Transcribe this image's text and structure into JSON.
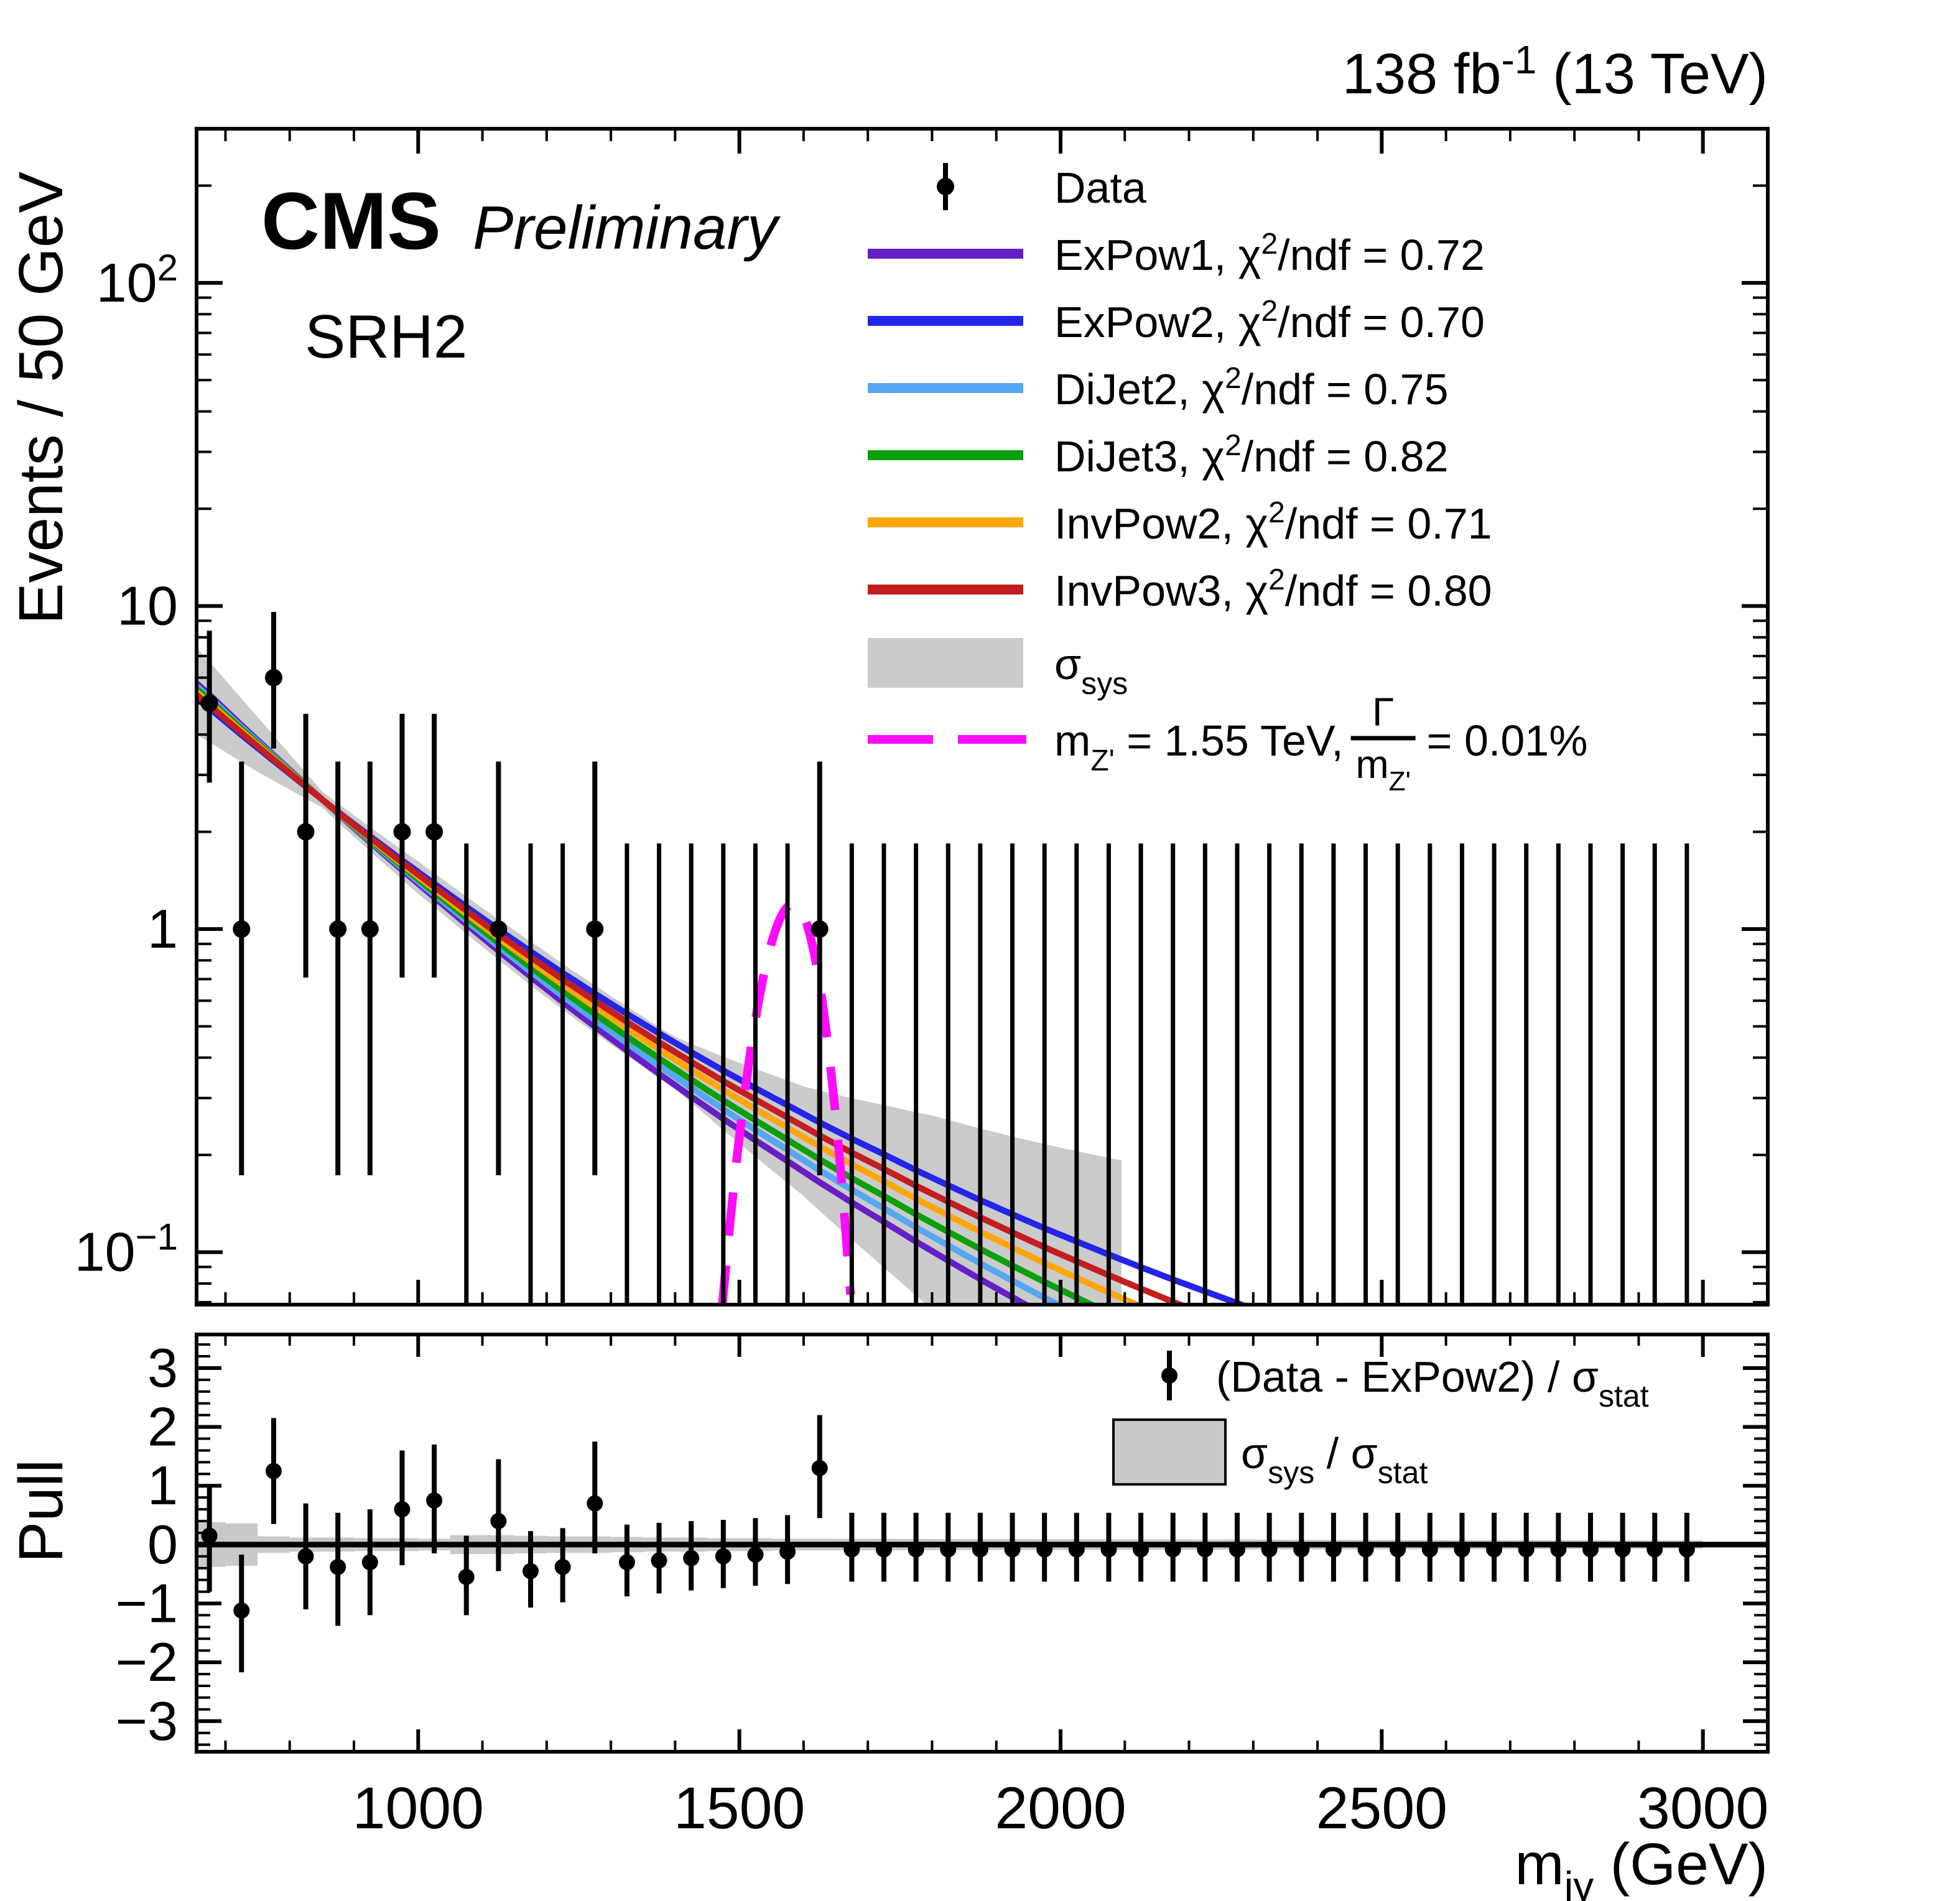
{
  "header": {
    "experiment": "CMS",
    "status": "Preliminary",
    "region": "SRH2",
    "lumi_main": "138 fb",
    "lumi_sup": "-1",
    "lumi_rest": " (13 TeV)"
  },
  "colors": {
    "purple": "#681EC6",
    "blue": "#2325E8",
    "lightblue": "#54A7F0",
    "green": "#0CA00C",
    "orange": "#FFA60A",
    "red": "#C41E1E",
    "magenta": "#FC0DFC",
    "sys_band": "#CBCBCB",
    "pull_band": "#C9C9C9",
    "marker": "#000000"
  },
  "chart_data": [
    {
      "type": "scatter",
      "panel": "main",
      "ylabel": "Events / 50 GeV",
      "yscale": "log",
      "ylim": [
        0.0688,
        300
      ],
      "xlim": [
        655,
        3101
      ],
      "x_major_ticks": [
        1000,
        1500,
        2000,
        2500,
        3000
      ],
      "x_minor_step": 100,
      "y_decade_labels": [
        "10^2",
        "10",
        "1",
        "10^-1"
      ],
      "bin_width_gev": 50,
      "legend_data_label": "Data",
      "data_points": [
        [
          675,
          5,
          2.84,
          8.382
        ],
        [
          725,
          1,
          0.173,
          3.3
        ],
        [
          775,
          6,
          3.62,
          9.584
        ],
        [
          825,
          2,
          0.708,
          4.638
        ],
        [
          875,
          1,
          0.173,
          3.3
        ],
        [
          925,
          1,
          0.173,
          3.3
        ],
        [
          975,
          2,
          0.708,
          4.638
        ],
        [
          1025,
          2,
          0.708,
          4.638
        ],
        [
          1125,
          1,
          0.173,
          3.3
        ],
        [
          1275,
          1,
          0.173,
          3.3
        ],
        [
          1625,
          1,
          0.173,
          3.3
        ]
      ],
      "zero_bins": {
        "upper_limit": 1.841,
        "x": [
          1075,
          1175,
          1225,
          1325,
          1375,
          1425,
          1475,
          1525,
          1575,
          1675,
          1725,
          1775,
          1825,
          1875,
          1925,
          1975,
          2025,
          2075,
          2125,
          2175,
          2225,
          2275,
          2325,
          2375,
          2425,
          2475,
          2525,
          2575,
          2625,
          2675,
          2725,
          2775,
          2825,
          2875,
          2925,
          2975
        ]
      },
      "fit_base_anchors": [
        [
          655,
          5.45
        ],
        [
          675,
          5.05
        ],
        [
          725,
          4.12
        ],
        [
          775,
          3.38
        ],
        [
          825,
          2.78
        ],
        [
          875,
          2.29
        ],
        [
          925,
          1.9
        ],
        [
          975,
          1.58
        ],
        [
          1025,
          1.32
        ],
        [
          1075,
          1.105
        ],
        [
          1125,
          0.928
        ],
        [
          1175,
          0.783
        ],
        [
          1225,
          0.663
        ],
        [
          1275,
          0.565
        ],
        [
          1325,
          0.483
        ],
        [
          1375,
          0.415
        ],
        [
          1425,
          0.358
        ],
        [
          1475,
          0.31
        ],
        [
          1525,
          0.27
        ],
        [
          1575,
          0.236
        ],
        [
          1625,
          0.206
        ],
        [
          1675,
          0.181
        ],
        [
          1725,
          0.16
        ],
        [
          1775,
          0.141
        ],
        [
          1825,
          0.125
        ],
        [
          1875,
          0.111
        ],
        [
          1925,
          0.099
        ],
        [
          1975,
          0.0885
        ],
        [
          2025,
          0.0795
        ],
        [
          2075,
          0.0715
        ],
        [
          2125,
          0.0645
        ],
        [
          2175,
          0.0583
        ],
        [
          2225,
          0.0529
        ]
      ],
      "fit_functions": [
        {
          "name": "ExPow1",
          "chi2ndf": "0.72",
          "color_key": "purple",
          "shape": -0.29
        },
        {
          "name": "ExPow2",
          "chi2ndf": "0.70",
          "color_key": "blue",
          "shape": 0.26
        },
        {
          "name": "DiJet2",
          "chi2ndf": "0.75",
          "color_key": "lightblue",
          "shape": -0.18
        },
        {
          "name": "DiJet3",
          "chi2ndf": "0.82",
          "color_key": "green",
          "shape": -0.08
        },
        {
          "name": "InvPow2",
          "chi2ndf": "0.71",
          "color_key": "orange",
          "shape": 0.04
        },
        {
          "name": "InvPow3",
          "chi2ndf": "0.80",
          "color_key": "red",
          "shape": 0.14
        }
      ],
      "sys_band": {
        "label_sigma": "σ",
        "label_sub": "sys",
        "half_width_log10_anchors": [
          [
            655,
            0.135
          ],
          [
            750,
            0.085
          ],
          [
            850,
            0.025
          ],
          [
            1000,
            0.05
          ],
          [
            1200,
            0.07
          ],
          [
            1400,
            0.08
          ],
          [
            1600,
            0.17
          ],
          [
            1800,
            0.3
          ],
          [
            2000,
            0.4
          ],
          [
            2100,
            0.45
          ]
        ],
        "x_end_gev": 2100
      },
      "signal": {
        "m_label": "m",
        "m_sub": "Z'",
        "mass_text": " = 1.55 TeV, ",
        "gamma": "Γ",
        "ratio_value": " = 0.01%",
        "peak_gev": 1585,
        "peak_value": 1.2,
        "sigma_left_gev": 100,
        "sigma_right_gev": 80
      }
    },
    {
      "type": "scatter",
      "panel": "pull",
      "ylabel": "Pull",
      "ylim": [
        -3.52,
        3.57
      ],
      "y_major_ticks": [
        -3,
        -2,
        -1,
        0,
        1,
        2,
        3
      ],
      "y_minor_step": 0.2,
      "xlabel_main": "m",
      "xlabel_sub": "jγ",
      "xlabel_rest": " (GeV)",
      "points": [
        [
          675,
          0.15,
          0.85,
          0.95,
          0.38
        ],
        [
          725,
          -1.12,
          0.95,
          1.05,
          0.36
        ],
        [
          775,
          1.25,
          0.9,
          0.9,
          0.14
        ],
        [
          825,
          -0.2,
          0.9,
          0.9,
          0.12
        ],
        [
          875,
          -0.38,
          0.92,
          1.0,
          0.12
        ],
        [
          925,
          -0.3,
          0.9,
          0.9,
          0.11
        ],
        [
          975,
          0.6,
          1.0,
          0.95,
          0.11
        ],
        [
          1025,
          0.75,
          0.95,
          0.9,
          0.1
        ],
        [
          1075,
          -0.55,
          0.7,
          0.65,
          0.16
        ],
        [
          1125,
          0.4,
          1.05,
          0.85,
          0.16
        ],
        [
          1175,
          -0.45,
          0.68,
          0.62,
          0.15
        ],
        [
          1225,
          -0.38,
          0.66,
          0.6,
          0.14
        ],
        [
          1275,
          0.7,
          1.05,
          0.85,
          0.14
        ],
        [
          1325,
          -0.3,
          0.64,
          0.58,
          0.13
        ],
        [
          1375,
          -0.27,
          0.64,
          0.56,
          0.12
        ],
        [
          1425,
          -0.23,
          0.63,
          0.55,
          0.12
        ],
        [
          1475,
          -0.2,
          0.62,
          0.54,
          0.11
        ],
        [
          1525,
          -0.17,
          0.62,
          0.53,
          0.11
        ],
        [
          1575,
          -0.12,
          0.62,
          0.55,
          0.1
        ],
        [
          1625,
          1.3,
          0.9,
          0.85,
          0.1
        ],
        [
          1675,
          -0.08,
          0.62,
          0.55,
          0.099
        ],
        [
          1725,
          -0.08,
          0.62,
          0.55,
          0.098
        ],
        [
          1775,
          -0.08,
          0.62,
          0.55,
          0.097
        ],
        [
          1825,
          -0.08,
          0.62,
          0.55,
          0.095
        ],
        [
          1875,
          -0.08,
          0.62,
          0.55,
          0.094
        ],
        [
          1925,
          -0.08,
          0.62,
          0.55,
          0.093
        ],
        [
          1975,
          -0.08,
          0.62,
          0.55,
          0.092
        ],
        [
          2025,
          -0.08,
          0.62,
          0.55,
          0.091
        ],
        [
          2075,
          -0.08,
          0.62,
          0.55,
          0.09
        ],
        [
          2125,
          -0.08,
          0.62,
          0.55,
          0.089
        ],
        [
          2175,
          -0.08,
          0.62,
          0.55,
          0.088
        ],
        [
          2225,
          -0.08,
          0.62,
          0.55,
          0.087
        ],
        [
          2275,
          -0.08,
          0.62,
          0.55,
          0.086
        ],
        [
          2325,
          -0.08,
          0.62,
          0.55,
          0.084
        ],
        [
          2375,
          -0.08,
          0.62,
          0.55,
          0.083
        ],
        [
          2425,
          -0.08,
          0.62,
          0.55,
          0.082
        ],
        [
          2475,
          -0.08,
          0.62,
          0.55,
          0.081
        ],
        [
          2525,
          -0.08,
          0.62,
          0.55,
          0.08
        ],
        [
          2575,
          -0.08,
          0.62,
          0.55,
          0.079
        ],
        [
          2625,
          -0.08,
          0.62,
          0.55,
          0.078
        ],
        [
          2675,
          -0.08,
          0.62,
          0.55,
          0.077
        ],
        [
          2725,
          -0.08,
          0.62,
          0.55,
          0.076
        ],
        [
          2775,
          -0.08,
          0.62,
          0.55,
          0.075
        ],
        [
          2825,
          -0.08,
          0.62,
          0.55,
          0.073
        ],
        [
          2875,
          -0.08,
          0.62,
          0.55,
          0.072
        ],
        [
          2925,
          -0.08,
          0.62,
          0.55,
          0.071
        ],
        [
          2975,
          -0.08,
          0.62,
          0.55,
          0.07
        ]
      ],
      "legend": {
        "row1_pre": "(Data - ExPow2) / σ",
        "row1_sub": "stat",
        "row2_a": "σ",
        "row2_a_sub": "sys",
        "row2_mid": " / σ",
        "row2_b_sub": "stat"
      }
    }
  ]
}
